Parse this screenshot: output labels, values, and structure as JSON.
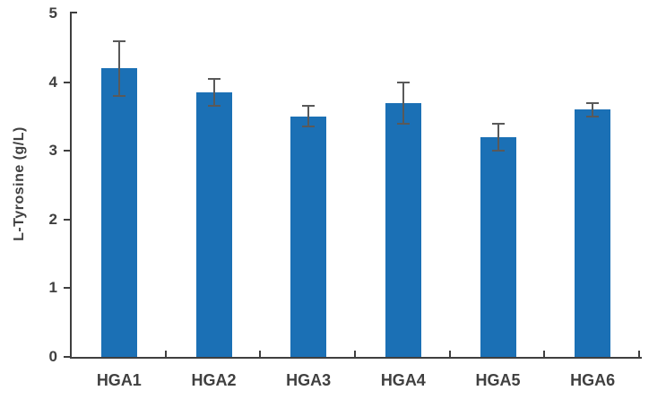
{
  "chart_data": {
    "type": "bar",
    "title": "",
    "categories": [
      "HGA1",
      "HGA2",
      "HGA3",
      "HGA4",
      "HGA5",
      "HGA6"
    ],
    "values": [
      4.2,
      3.85,
      3.5,
      3.7,
      3.2,
      3.6
    ],
    "errors": [
      0.4,
      0.2,
      0.15,
      0.3,
      0.2,
      0.1
    ],
    "error_bar_style": "plus-minus-with-caps",
    "xlabel": "",
    "ylabel": "L-Tyrosine (g/L)",
    "ylim": [
      0,
      5
    ],
    "yticks": [
      0,
      1,
      2,
      3,
      4,
      5
    ],
    "grid": false,
    "legend": null,
    "colors": {
      "bar": "#1B70B5",
      "error_bar": "#595959",
      "axis": "#3F3F3F",
      "text": "#404040",
      "background": "#FFFFFF"
    }
  }
}
